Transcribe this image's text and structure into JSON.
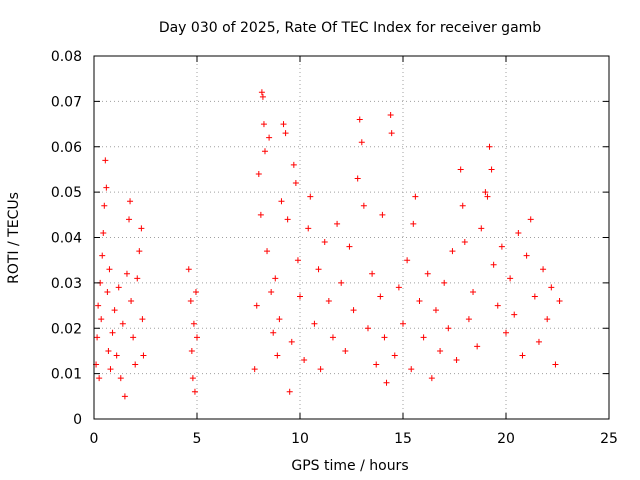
{
  "chart_data": {
    "type": "scatter",
    "title": "Day 030 of 2025, Rate Of TEC Index for receiver gamb",
    "xlabel": "GPS time / hours",
    "ylabel": "ROTI / TECUs",
    "xlim": [
      0,
      25
    ],
    "ylim": [
      0,
      0.08
    ],
    "x_ticks": [
      0,
      5,
      10,
      15,
      20,
      25
    ],
    "y_ticks": [
      0,
      0.01,
      0.02,
      0.03,
      0.04,
      0.05,
      0.06,
      0.07,
      0.08
    ],
    "x_tick_labels": [
      "0",
      "5",
      "10",
      "15",
      "20",
      "25"
    ],
    "y_tick_labels": [
      "0",
      "0.01",
      "0.02",
      "0.03",
      "0.04",
      "0.05",
      "0.06",
      "0.07",
      "0.08"
    ],
    "grid": true,
    "marker": "+",
    "color": "#ff0000",
    "series": [
      {
        "name": "ROTI",
        "points": [
          [
            0.1,
            0.012
          ],
          [
            0.15,
            0.018
          ],
          [
            0.2,
            0.025
          ],
          [
            0.25,
            0.009
          ],
          [
            0.3,
            0.03
          ],
          [
            0.35,
            0.022
          ],
          [
            0.4,
            0.036
          ],
          [
            0.45,
            0.041
          ],
          [
            0.5,
            0.047
          ],
          [
            0.55,
            0.057
          ],
          [
            0.6,
            0.051
          ],
          [
            0.65,
            0.028
          ],
          [
            0.7,
            0.015
          ],
          [
            0.75,
            0.033
          ],
          [
            0.8,
            0.011
          ],
          [
            0.9,
            0.019
          ],
          [
            1.0,
            0.024
          ],
          [
            1.1,
            0.014
          ],
          [
            1.2,
            0.029
          ],
          [
            1.3,
            0.009
          ],
          [
            1.4,
            0.021
          ],
          [
            1.5,
            0.005
          ],
          [
            1.6,
            0.032
          ],
          [
            1.7,
            0.044
          ],
          [
            1.75,
            0.048
          ],
          [
            1.8,
            0.026
          ],
          [
            1.9,
            0.018
          ],
          [
            2.0,
            0.012
          ],
          [
            2.1,
            0.031
          ],
          [
            2.2,
            0.037
          ],
          [
            2.3,
            0.042
          ],
          [
            2.35,
            0.022
          ],
          [
            2.4,
            0.014
          ],
          [
            4.6,
            0.033
          ],
          [
            4.7,
            0.026
          ],
          [
            4.75,
            0.015
          ],
          [
            4.8,
            0.009
          ],
          [
            4.85,
            0.021
          ],
          [
            4.9,
            0.006
          ],
          [
            4.95,
            0.028
          ],
          [
            5.0,
            0.018
          ],
          [
            7.8,
            0.011
          ],
          [
            7.9,
            0.025
          ],
          [
            8.0,
            0.054
          ],
          [
            8.1,
            0.045
          ],
          [
            8.15,
            0.072
          ],
          [
            8.2,
            0.071
          ],
          [
            8.25,
            0.065
          ],
          [
            8.3,
            0.059
          ],
          [
            8.4,
            0.037
          ],
          [
            8.5,
            0.062
          ],
          [
            8.6,
            0.028
          ],
          [
            8.7,
            0.019
          ],
          [
            8.8,
            0.031
          ],
          [
            8.9,
            0.014
          ],
          [
            9.0,
            0.022
          ],
          [
            9.1,
            0.048
          ],
          [
            9.2,
            0.065
          ],
          [
            9.3,
            0.063
          ],
          [
            9.4,
            0.044
          ],
          [
            9.5,
            0.006
          ],
          [
            9.6,
            0.017
          ],
          [
            9.7,
            0.056
          ],
          [
            9.8,
            0.052
          ],
          [
            9.9,
            0.035
          ],
          [
            10.0,
            0.027
          ],
          [
            10.2,
            0.013
          ],
          [
            10.4,
            0.042
          ],
          [
            10.5,
            0.049
          ],
          [
            10.7,
            0.021
          ],
          [
            10.9,
            0.033
          ],
          [
            11.0,
            0.011
          ],
          [
            11.2,
            0.039
          ],
          [
            11.4,
            0.026
          ],
          [
            11.6,
            0.018
          ],
          [
            11.8,
            0.043
          ],
          [
            12.0,
            0.03
          ],
          [
            12.2,
            0.015
          ],
          [
            12.4,
            0.038
          ],
          [
            12.6,
            0.024
          ],
          [
            12.8,
            0.053
          ],
          [
            12.9,
            0.066
          ],
          [
            13.0,
            0.061
          ],
          [
            13.1,
            0.047
          ],
          [
            13.3,
            0.02
          ],
          [
            13.5,
            0.032
          ],
          [
            13.7,
            0.012
          ],
          [
            13.9,
            0.027
          ],
          [
            14.0,
            0.045
          ],
          [
            14.1,
            0.018
          ],
          [
            14.2,
            0.008
          ],
          [
            14.4,
            0.067
          ],
          [
            14.45,
            0.063
          ],
          [
            14.6,
            0.014
          ],
          [
            14.8,
            0.029
          ],
          [
            15.0,
            0.021
          ],
          [
            15.2,
            0.035
          ],
          [
            15.4,
            0.011
          ],
          [
            15.5,
            0.043
          ],
          [
            15.6,
            0.049
          ],
          [
            15.8,
            0.026
          ],
          [
            16.0,
            0.018
          ],
          [
            16.2,
            0.032
          ],
          [
            16.4,
            0.009
          ],
          [
            16.6,
            0.024
          ],
          [
            16.8,
            0.015
          ],
          [
            17.0,
            0.03
          ],
          [
            17.2,
            0.02
          ],
          [
            17.4,
            0.037
          ],
          [
            17.6,
            0.013
          ],
          [
            17.8,
            0.055
          ],
          [
            17.9,
            0.047
          ],
          [
            18.0,
            0.039
          ],
          [
            18.2,
            0.022
          ],
          [
            18.4,
            0.028
          ],
          [
            18.6,
            0.016
          ],
          [
            18.8,
            0.042
          ],
          [
            19.0,
            0.05
          ],
          [
            19.1,
            0.049
          ],
          [
            19.2,
            0.06
          ],
          [
            19.3,
            0.055
          ],
          [
            19.4,
            0.034
          ],
          [
            19.6,
            0.025
          ],
          [
            19.8,
            0.038
          ],
          [
            20.0,
            0.019
          ],
          [
            20.2,
            0.031
          ],
          [
            20.4,
            0.023
          ],
          [
            20.6,
            0.041
          ],
          [
            20.8,
            0.014
          ],
          [
            21.0,
            0.036
          ],
          [
            21.2,
            0.044
          ],
          [
            21.4,
            0.027
          ],
          [
            21.6,
            0.017
          ],
          [
            21.8,
            0.033
          ],
          [
            22.0,
            0.022
          ],
          [
            22.2,
            0.029
          ],
          [
            22.4,
            0.012
          ],
          [
            22.6,
            0.026
          ]
        ]
      }
    ]
  }
}
